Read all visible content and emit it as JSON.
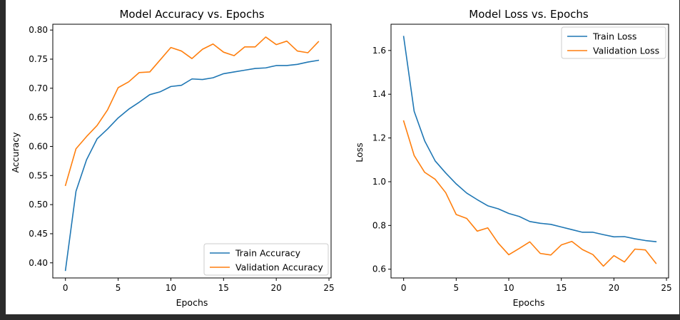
{
  "chart_data": [
    {
      "type": "line",
      "title": "Model Accuracy vs. Epochs",
      "xlabel": "Epochs",
      "ylabel": "Accuracy",
      "xlim": [
        -1.2,
        25.2
      ],
      "ylim": [
        0.374,
        0.81
      ],
      "xticks": [
        0,
        5,
        10,
        15,
        20,
        25
      ],
      "xtick_labels": [
        "0",
        "5",
        "10",
        "15",
        "20",
        "25"
      ],
      "yticks": [
        0.4,
        0.45,
        0.5,
        0.55,
        0.6,
        0.65,
        0.7,
        0.75,
        0.8
      ],
      "ytick_labels": [
        "0.40",
        "0.45",
        "0.50",
        "0.55",
        "0.60",
        "0.65",
        "0.70",
        "0.75",
        "0.80"
      ],
      "legend_position": "lower right",
      "x": [
        0,
        1,
        2,
        3,
        4,
        5,
        6,
        7,
        8,
        9,
        10,
        11,
        12,
        13,
        14,
        15,
        16,
        17,
        18,
        19,
        20,
        21,
        22,
        23,
        24
      ],
      "series": [
        {
          "name": "Train Accuracy",
          "color": "#1f77b4",
          "values": [
            0.387,
            0.523,
            0.577,
            0.613,
            0.63,
            0.649,
            0.664,
            0.676,
            0.689,
            0.694,
            0.703,
            0.705,
            0.716,
            0.715,
            0.718,
            0.725,
            0.728,
            0.731,
            0.734,
            0.735,
            0.739,
            0.739,
            0.741,
            0.745,
            0.748
          ]
        },
        {
          "name": "Validation Accuracy",
          "color": "#ff7f0e",
          "values": [
            0.533,
            0.596,
            0.617,
            0.636,
            0.663,
            0.701,
            0.711,
            0.727,
            0.728,
            0.749,
            0.77,
            0.764,
            0.751,
            0.767,
            0.776,
            0.762,
            0.756,
            0.771,
            0.771,
            0.788,
            0.775,
            0.781,
            0.764,
            0.761,
            0.78
          ]
        }
      ]
    },
    {
      "type": "line",
      "title": "Model Loss vs. Epochs",
      "xlabel": "Epochs",
      "ylabel": "Loss",
      "xlim": [
        -1.2,
        25.2
      ],
      "ylim": [
        0.56,
        1.72
      ],
      "xticks": [
        0,
        5,
        10,
        15,
        20,
        25
      ],
      "xtick_labels": [
        "0",
        "5",
        "10",
        "15",
        "20",
        "25"
      ],
      "yticks": [
        0.6,
        0.8,
        1.0,
        1.2,
        1.4,
        1.6
      ],
      "ytick_labels": [
        "0.6",
        "0.8",
        "1.0",
        "1.2",
        "1.4",
        "1.6"
      ],
      "legend_position": "upper right",
      "x": [
        0,
        1,
        2,
        3,
        4,
        5,
        6,
        7,
        8,
        9,
        10,
        11,
        12,
        13,
        14,
        15,
        16,
        17,
        18,
        19,
        20,
        21,
        22,
        23,
        24
      ],
      "series": [
        {
          "name": "Train Loss",
          "color": "#1f77b4",
          "values": [
            1.664,
            1.322,
            1.187,
            1.095,
            1.04,
            0.99,
            0.948,
            0.918,
            0.89,
            0.876,
            0.855,
            0.841,
            0.818,
            0.81,
            0.805,
            0.793,
            0.781,
            0.769,
            0.769,
            0.758,
            0.748,
            0.749,
            0.739,
            0.731,
            0.726
          ]
        },
        {
          "name": "Validation Loss",
          "color": "#ff7f0e",
          "values": [
            1.278,
            1.12,
            1.043,
            1.011,
            0.95,
            0.85,
            0.832,
            0.774,
            0.789,
            0.719,
            0.666,
            0.695,
            0.725,
            0.672,
            0.665,
            0.711,
            0.727,
            0.69,
            0.667,
            0.614,
            0.662,
            0.633,
            0.692,
            0.688,
            0.627
          ]
        }
      ]
    }
  ]
}
